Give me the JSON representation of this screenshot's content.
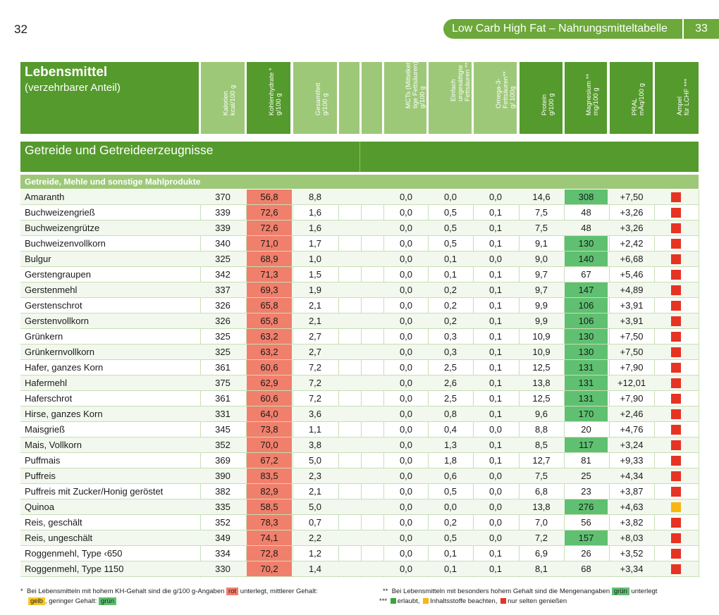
{
  "page": {
    "left_number": "32",
    "header_title": "Low Carb High Fat – Nahrungsmitteltabelle",
    "right_number": "33"
  },
  "table_head": {
    "title": "Lebensmittel",
    "subtitle": "(verzehrbarer Anteil)",
    "columns": [
      "Kalorien\nkcal/100 g",
      "Kohlenhydrate *\ng/100 g",
      "Gesamtfett\ng/100 g",
      "",
      "",
      "MCTs (Mittelket-\ntige Fettsäuren) **\ng/100 g",
      "Einfach\nungesättigte\nFettsäuren **\ng/100 g",
      "Omega-3-\nFettsäuren**\ng/ 100g",
      "Protein\ng/100 g",
      "Magnesium **\nmg/100 g",
      "PRAL\nmÄq/100 g",
      "Ampel\nfür LCHF ***"
    ]
  },
  "section": {
    "title": "Getreide und Getreideerzeugnisse",
    "subsection": "Getreide, Mehle und sonstige Mahlprodukte"
  },
  "rows": [
    {
      "name": "Amaranth",
      "kcal": "370",
      "kh": "56,8",
      "fett": "8,8",
      "mct": "0,0",
      "ef": "0,0",
      "o3": "0,0",
      "protein": "14,6",
      "mg": "308",
      "mg_high": true,
      "pral": "+7,50",
      "ampel": "red"
    },
    {
      "name": "Buchweizengrieß",
      "kcal": "339",
      "kh": "72,6",
      "fett": "1,6",
      "mct": "0,0",
      "ef": "0,5",
      "o3": "0,1",
      "protein": "7,5",
      "mg": "48",
      "mg_high": false,
      "pral": "+3,26",
      "ampel": "red"
    },
    {
      "name": "Buchweizengrütze",
      "kcal": "339",
      "kh": "72,6",
      "fett": "1,6",
      "mct": "0,0",
      "ef": "0,5",
      "o3": "0,1",
      "protein": "7,5",
      "mg": "48",
      "mg_high": false,
      "pral": "+3,26",
      "ampel": "red"
    },
    {
      "name": "Buchweizenvollkorn",
      "kcal": "340",
      "kh": "71,0",
      "fett": "1,7",
      "mct": "0,0",
      "ef": "0,5",
      "o3": "0,1",
      "protein": "9,1",
      "mg": "130",
      "mg_high": true,
      "pral": "+2,42",
      "ampel": "red"
    },
    {
      "name": "Bulgur",
      "kcal": "325",
      "kh": "68,9",
      "fett": "1,0",
      "mct": "0,0",
      "ef": "0,1",
      "o3": "0,0",
      "protein": "9,0",
      "mg": "140",
      "mg_high": true,
      "pral": "+6,68",
      "ampel": "red"
    },
    {
      "name": "Gerstengraupen",
      "kcal": "342",
      "kh": "71,3",
      "fett": "1,5",
      "mct": "0,0",
      "ef": "0,1",
      "o3": "0,1",
      "protein": "9,7",
      "mg": "67",
      "mg_high": false,
      "pral": "+5,46",
      "ampel": "red"
    },
    {
      "name": "Gerstenmehl",
      "kcal": "337",
      "kh": "69,3",
      "fett": "1,9",
      "mct": "0,0",
      "ef": "0,2",
      "o3": "0,1",
      "protein": "9,7",
      "mg": "147",
      "mg_high": true,
      "pral": "+4,89",
      "ampel": "red"
    },
    {
      "name": "Gerstenschrot",
      "kcal": "326",
      "kh": "65,8",
      "fett": "2,1",
      "mct": "0,0",
      "ef": "0,2",
      "o3": "0,1",
      "protein": "9,9",
      "mg": "106",
      "mg_high": true,
      "pral": "+3,91",
      "ampel": "red"
    },
    {
      "name": "Gerstenvollkorn",
      "kcal": "326",
      "kh": "65,8",
      "fett": "2,1",
      "mct": "0,0",
      "ef": "0,2",
      "o3": "0,1",
      "protein": "9,9",
      "mg": "106",
      "mg_high": true,
      "pral": "+3,91",
      "ampel": "red"
    },
    {
      "name": "Grünkern",
      "kcal": "325",
      "kh": "63,2",
      "fett": "2,7",
      "mct": "0,0",
      "ef": "0,3",
      "o3": "0,1",
      "protein": "10,9",
      "mg": "130",
      "mg_high": true,
      "pral": "+7,50",
      "ampel": "red"
    },
    {
      "name": "Grünkernvollkorn",
      "kcal": "325",
      "kh": "63,2",
      "fett": "2,7",
      "mct": "0,0",
      "ef": "0,3",
      "o3": "0,1",
      "protein": "10,9",
      "mg": "130",
      "mg_high": true,
      "pral": "+7,50",
      "ampel": "red"
    },
    {
      "name": "Hafer, ganzes Korn",
      "kcal": "361",
      "kh": "60,6",
      "fett": "7,2",
      "mct": "0,0",
      "ef": "2,5",
      "o3": "0,1",
      "protein": "12,5",
      "mg": "131",
      "mg_high": true,
      "pral": "+7,90",
      "ampel": "red"
    },
    {
      "name": "Hafermehl",
      "kcal": "375",
      "kh": "62,9",
      "fett": "7,2",
      "mct": "0,0",
      "ef": "2,6",
      "o3": "0,1",
      "protein": "13,8",
      "mg": "131",
      "mg_high": true,
      "pral": "+12,01",
      "ampel": "red"
    },
    {
      "name": "Haferschrot",
      "kcal": "361",
      "kh": "60,6",
      "fett": "7,2",
      "mct": "0,0",
      "ef": "2,5",
      "o3": "0,1",
      "protein": "12,5",
      "mg": "131",
      "mg_high": true,
      "pral": "+7,90",
      "ampel": "red"
    },
    {
      "name": "Hirse, ganzes Korn",
      "kcal": "331",
      "kh": "64,0",
      "fett": "3,6",
      "mct": "0,0",
      "ef": "0,8",
      "o3": "0,1",
      "protein": "9,6",
      "mg": "170",
      "mg_high": true,
      "pral": "+2,46",
      "ampel": "red"
    },
    {
      "name": "Maisgrieß",
      "kcal": "345",
      "kh": "73,8",
      "fett": "1,1",
      "mct": "0,0",
      "ef": "0,4",
      "o3": "0,0",
      "protein": "8,8",
      "mg": "20",
      "mg_high": false,
      "pral": "+4,76",
      "ampel": "red"
    },
    {
      "name": "Mais, Vollkorn",
      "kcal": "352",
      "kh": "70,0",
      "fett": "3,8",
      "mct": "0,0",
      "ef": "1,3",
      "o3": "0,1",
      "protein": "8,5",
      "mg": "117",
      "mg_high": true,
      "pral": "+3,24",
      "ampel": "red"
    },
    {
      "name": "Puffmais",
      "kcal": "369",
      "kh": "67,2",
      "fett": "5,0",
      "mct": "0,0",
      "ef": "1,8",
      "o3": "0,1",
      "protein": "12,7",
      "mg": "81",
      "mg_high": false,
      "pral": "+9,33",
      "ampel": "red"
    },
    {
      "name": "Puffreis",
      "kcal": "390",
      "kh": "83,5",
      "fett": "2,3",
      "mct": "0,0",
      "ef": "0,6",
      "o3": "0,0",
      "protein": "7,5",
      "mg": "25",
      "mg_high": false,
      "pral": "+4,34",
      "ampel": "red"
    },
    {
      "name": "Puffreis mit Zucker/Honig geröstet",
      "kcal": "382",
      "kh": "82,9",
      "fett": "2,1",
      "mct": "0,0",
      "ef": "0,5",
      "o3": "0,0",
      "protein": "6,8",
      "mg": "23",
      "mg_high": false,
      "pral": "+3,87",
      "ampel": "red"
    },
    {
      "name": "Quinoa",
      "kcal": "335",
      "kh": "58,5",
      "fett": "5,0",
      "mct": "0,0",
      "ef": "0,0",
      "o3": "0,0",
      "protein": "13,8",
      "mg": "276",
      "mg_high": true,
      "pral": "+4,63",
      "ampel": "yellow"
    },
    {
      "name": "Reis, geschält",
      "kcal": "352",
      "kh": "78,3",
      "fett": "0,7",
      "mct": "0,0",
      "ef": "0,2",
      "o3": "0,0",
      "protein": "7,0",
      "mg": "56",
      "mg_high": false,
      "pral": "+3,82",
      "ampel": "red"
    },
    {
      "name": "Reis, ungeschält",
      "kcal": "349",
      "kh": "74,1",
      "fett": "2,2",
      "mct": "0,0",
      "ef": "0,5",
      "o3": "0,0",
      "protein": "7,2",
      "mg": "157",
      "mg_high": true,
      "pral": "+8,03",
      "ampel": "red"
    },
    {
      "name": "Roggenmehl, Type ‹650",
      "kcal": "334",
      "kh": "72,8",
      "fett": "1,2",
      "mct": "0,0",
      "ef": "0,1",
      "o3": "0,1",
      "protein": "6,9",
      "mg": "26",
      "mg_high": false,
      "pral": "+3,52",
      "ampel": "red"
    },
    {
      "name": "Roggenmehl, Type 1150",
      "kcal": "330",
      "kh": "70,2",
      "fett": "1,4",
      "mct": "0,0",
      "ef": "0,1",
      "o3": "0,1",
      "protein": "8,1",
      "mg": "68",
      "mg_high": false,
      "pral": "+3,34",
      "ampel": "red"
    }
  ],
  "footnotes": {
    "left_star": "*",
    "left_p1": "Bei Lebensmitteln mit hohem KH-Gehalt sind die g/100 g-Angaben",
    "left_tag_rot": "rot",
    "left_p2": "unterlegt, mittlerer Gehalt:",
    "left_tag_gelb": "gelb",
    "left_p3": ", geringer Gehalt:",
    "left_tag_gruen": "grün",
    "right_star2": "**",
    "right_p1": "Bei Lebensmitteln mit besonders hohem Gehalt sind die Mengenangaben",
    "right_tag_gruen": "grün",
    "right_p2": "unterlegt",
    "right_star3": "***",
    "legend_green": "erlaubt,",
    "legend_yellow": "Inhaltsstoffe beachten,",
    "legend_red": "nur selten genießen"
  },
  "colors": {
    "green_dark": "#559a2c",
    "green_light": "#9dc878",
    "kh_red": "#f07f6c",
    "mg_green": "#5fc071",
    "ampel_red": "#e63323",
    "ampel_yellow": "#f7b612",
    "ampel_green": "#3aa639"
  }
}
